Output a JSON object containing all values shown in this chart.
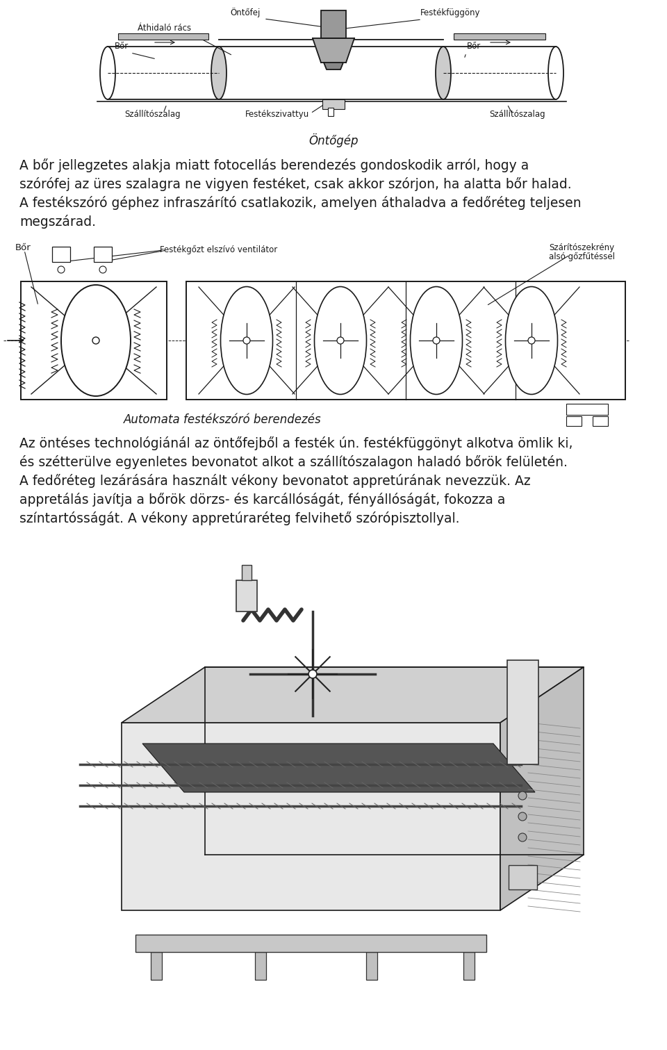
{
  "bg_color": "#ffffff",
  "fig_width": 9.6,
  "fig_height": 15.11,
  "text_color": "#000000",
  "paragraph1_lines": [
    "A bőr jellegzetes alakja miatt fotocellás berendezés gondoskodik arról, hogy a",
    "szórófej az üres szalagra ne vigyen festéket, csak akkor szórjon, ha alatta bőr halad.",
    "A festékszóró géphez infraszárító csatlakozik, amelyen áthaladva a fedőréteg teljesen",
    "megszárad."
  ],
  "paragraph2_lines": [
    "Az öntéses technológiánál az öntőfejből a festék ún. festékfüggönyt alkotva ömlik ki,",
    "és szétterülve egyenletes bevonatot alkot a szállítószalagon haladó bőrök felületén.",
    "A fedőréteg lezárására használt vékony bevonatot appretúrának nevezzük. Az",
    "appretálás javítja a bőrök dörzs- és karcállóságát, fényállóságát, fokozza a",
    "színtartósságát. A vékony appretúraréteg felvihető szórópisztollyal."
  ],
  "caption1": "Öntőgép",
  "caption2": "Automata festékszóró berendezés",
  "label_ontofej": "Öntőfej",
  "label_athidalo": "Áthidaló rács",
  "label_festekfuggony": "Festékfüggöny",
  "label_bor_left": "Bőr",
  "label_bor_right": "Bőr",
  "label_szallito_left": "Szállítószalag",
  "label_festekszivattyu": "Festékszivattyu",
  "label_szallito_right": "Szállítószalag",
  "label_bor2": "Bőr",
  "label_festekgozt": "Festékgőzt elszívó ventilátor",
  "label_szarito_line1": "Szárítószekrény",
  "label_szarito_line2": "alsó gőzfűtéssel",
  "font_body": 13.5,
  "font_caption": 12,
  "font_label": 8.5
}
